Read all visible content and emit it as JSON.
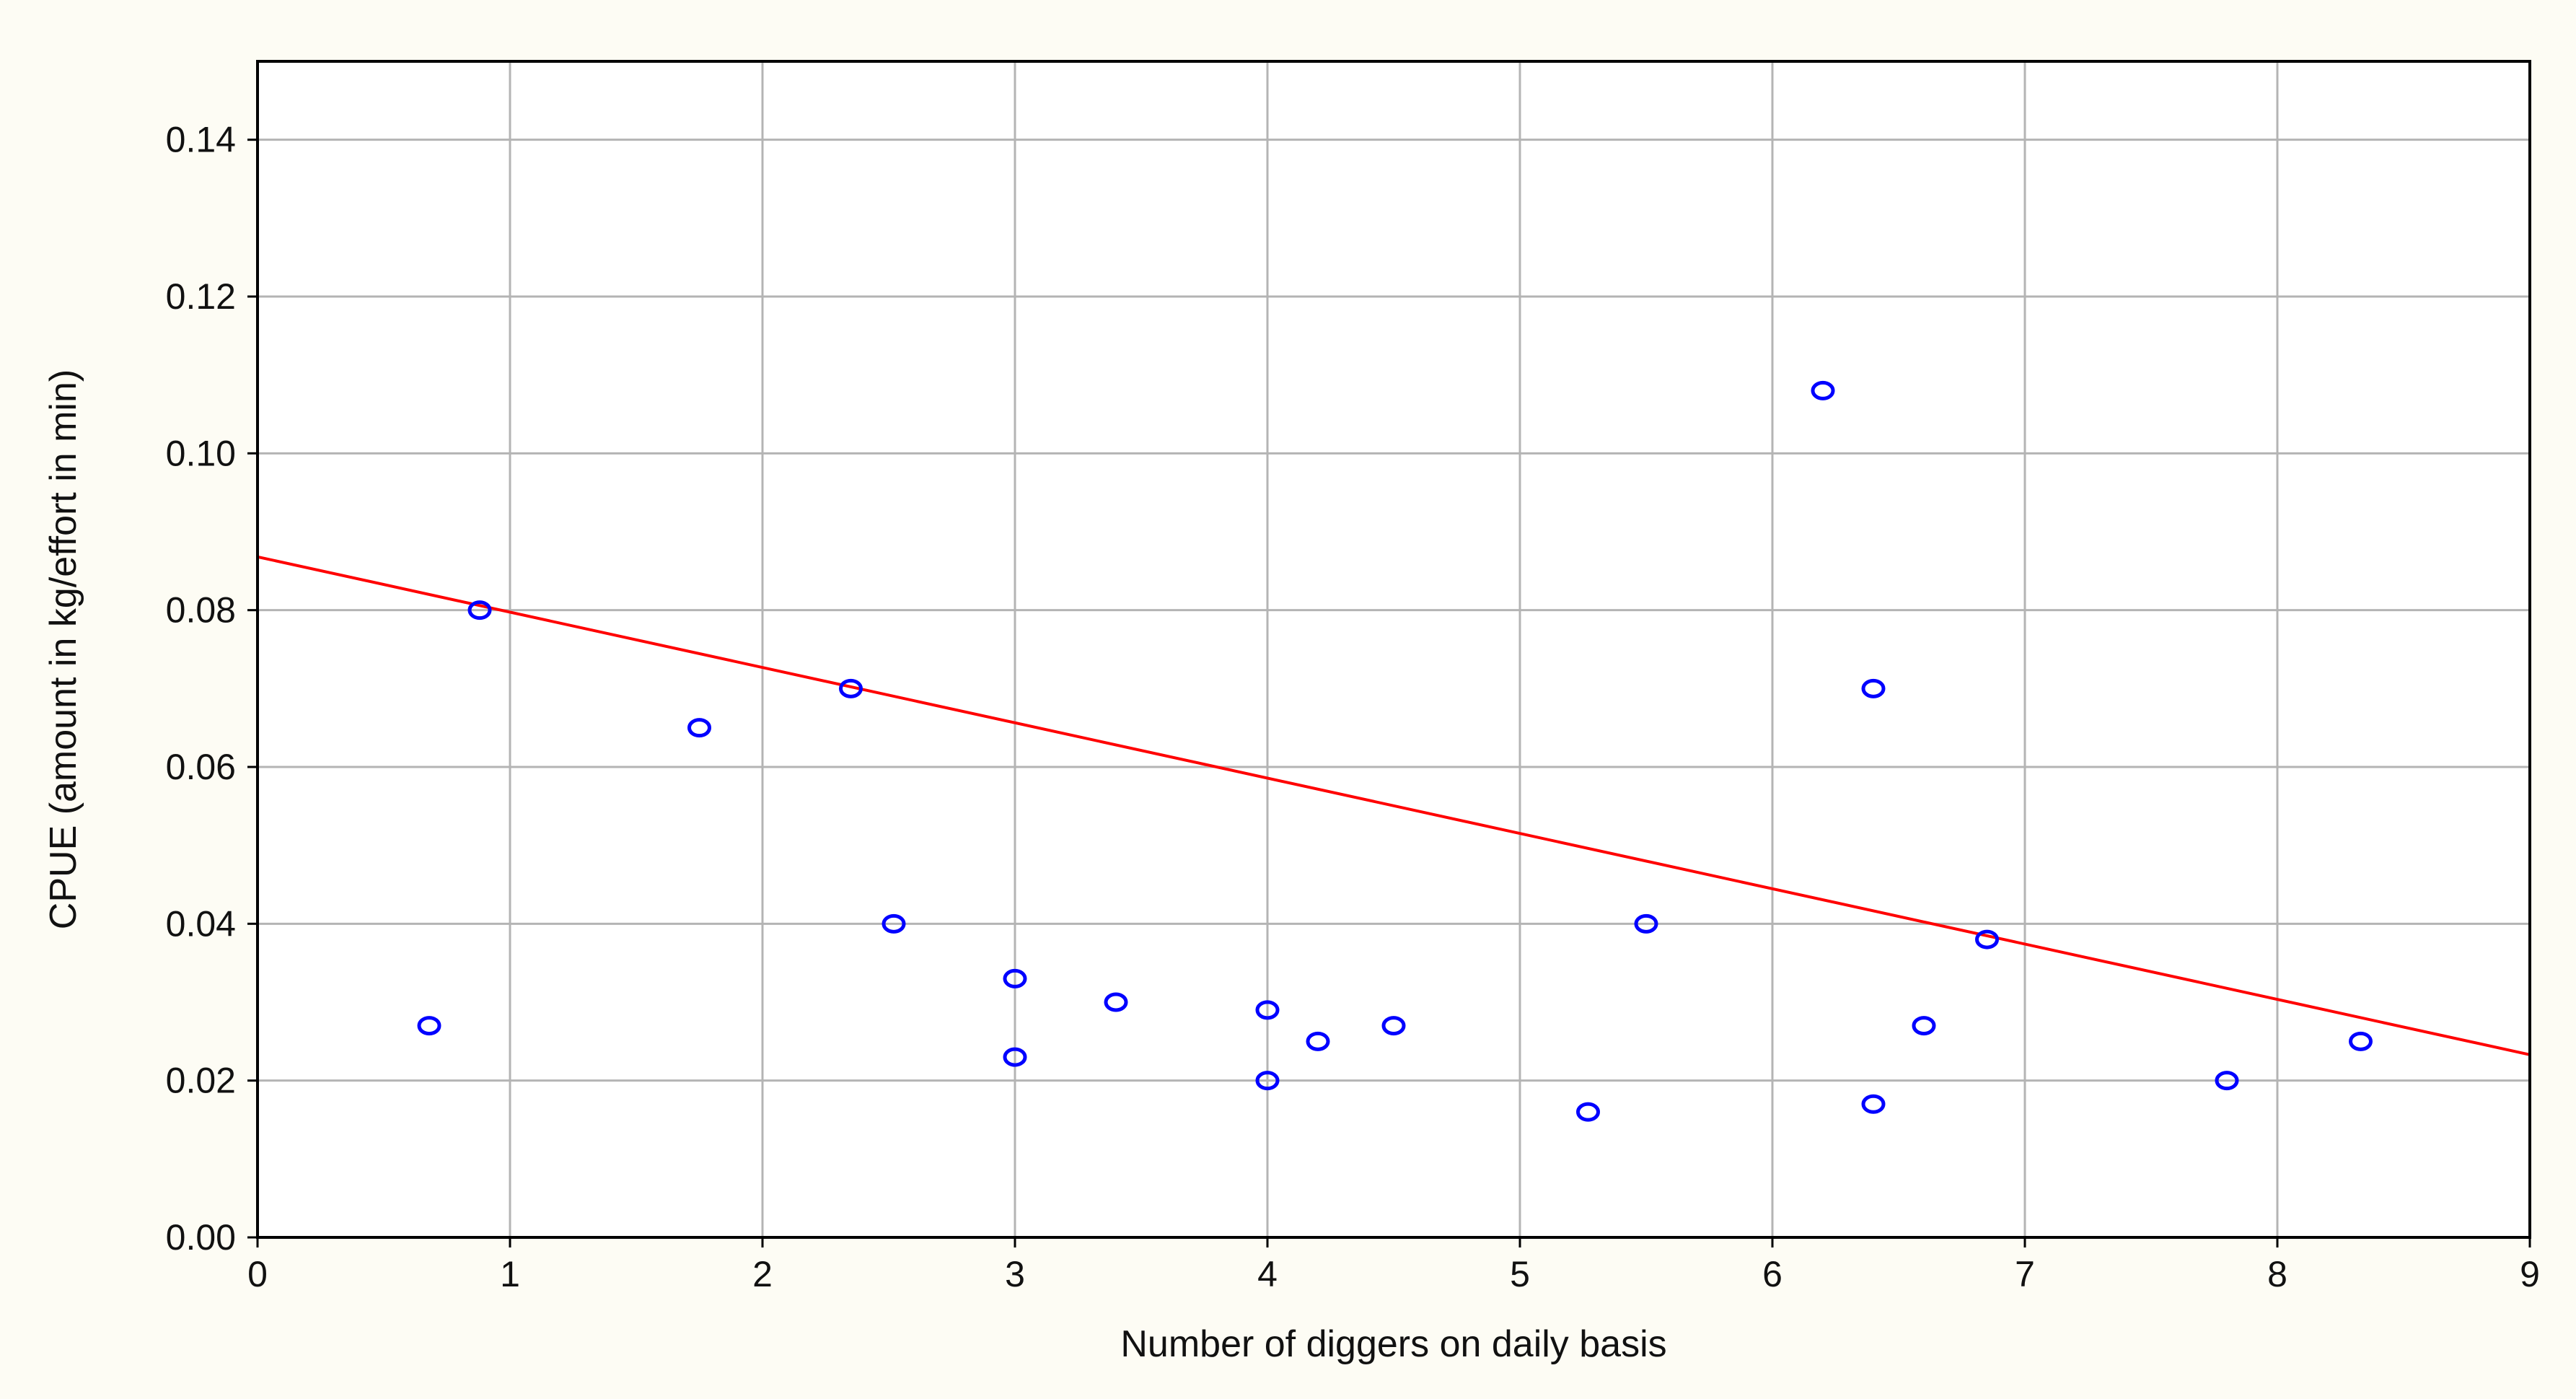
{
  "chart_data": {
    "type": "scatter",
    "title": "",
    "xlabel": "Number of diggers on daily basis",
    "ylabel": "CPUE (amount in kg/effort in min)",
    "xlim": [
      0,
      9
    ],
    "ylim": [
      0,
      0.15
    ],
    "x_ticks": [
      "0",
      "1",
      "2",
      "3",
      "4",
      "5",
      "6",
      "7",
      "8",
      "9"
    ],
    "y_ticks": [
      "0.00",
      "0.02",
      "0.04",
      "0.06",
      "0.08",
      "0.10",
      "0.12",
      "0.14"
    ],
    "grid": true,
    "legend": "none",
    "points": [
      {
        "x": 0.68,
        "y": 0.027
      },
      {
        "x": 0.88,
        "y": 0.08
      },
      {
        "x": 1.75,
        "y": 0.065
      },
      {
        "x": 2.35,
        "y": 0.07
      },
      {
        "x": 2.52,
        "y": 0.04
      },
      {
        "x": 3.0,
        "y": 0.033
      },
      {
        "x": 3.0,
        "y": 0.023
      },
      {
        "x": 3.4,
        "y": 0.03
      },
      {
        "x": 4.0,
        "y": 0.029
      },
      {
        "x": 4.0,
        "y": 0.02
      },
      {
        "x": 4.2,
        "y": 0.025
      },
      {
        "x": 4.5,
        "y": 0.027
      },
      {
        "x": 5.27,
        "y": 0.016
      },
      {
        "x": 5.5,
        "y": 0.04
      },
      {
        "x": 6.2,
        "y": 0.108
      },
      {
        "x": 6.4,
        "y": 0.07
      },
      {
        "x": 6.4,
        "y": 0.017
      },
      {
        "x": 6.6,
        "y": 0.027
      },
      {
        "x": 6.85,
        "y": 0.038
      },
      {
        "x": 7.8,
        "y": 0.02
      },
      {
        "x": 8.33,
        "y": 0.025
      }
    ],
    "fit_line": {
      "x": [
        0,
        9
      ],
      "y": [
        0.0868,
        0.0233
      ]
    },
    "colors": {
      "points": "#0000ff",
      "fit_line": "#ff0000",
      "grid": "#b4b4b4",
      "frame": "#000000",
      "outer_background": "#fdfcf4",
      "plot_background": "#ffffff"
    }
  }
}
